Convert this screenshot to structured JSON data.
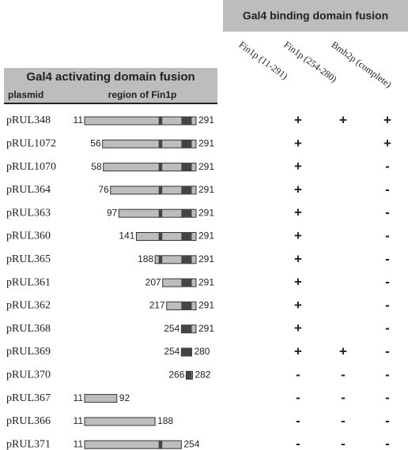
{
  "header": {
    "binding_title": "Gal4 binding domain fusion",
    "activating_title": "Gal4 activating domain fusion",
    "plasmid_label": "plasmid",
    "region_label": "region of Fin1p",
    "columns": [
      "Fin1p (11-291)",
      "Fin1p (254-280)",
      "Bmh2p (complete)"
    ]
  },
  "rows": [
    {
      "plasmid": "pRUL348",
      "start": 11,
      "end": 291,
      "results": [
        "+",
        "+",
        "+"
      ]
    },
    {
      "plasmid": "pRUL1072",
      "start": 56,
      "end": 291,
      "results": [
        "+",
        "",
        "+"
      ]
    },
    {
      "plasmid": "pRUL1070",
      "start": 58,
      "end": 291,
      "results": [
        "+",
        "",
        "-"
      ]
    },
    {
      "plasmid": "pRUL364",
      "start": 76,
      "end": 291,
      "results": [
        "+",
        "",
        "-"
      ]
    },
    {
      "plasmid": "pRUL363",
      "start": 97,
      "end": 291,
      "results": [
        "+",
        "",
        "-"
      ]
    },
    {
      "plasmid": "pRUL360",
      "start": 141,
      "end": 291,
      "results": [
        "+",
        "",
        "-"
      ]
    },
    {
      "plasmid": "pRUL365",
      "start": 188,
      "end": 291,
      "results": [
        "+",
        "",
        "-"
      ]
    },
    {
      "plasmid": "pRUL361",
      "start": 207,
      "end": 291,
      "results": [
        "+",
        "",
        "-"
      ]
    },
    {
      "plasmid": "pRUL362",
      "start": 217,
      "end": 291,
      "results": [
        "+",
        "",
        "-"
      ]
    },
    {
      "plasmid": "pRUL368",
      "start": 254,
      "end": 291,
      "results": [
        "+",
        "",
        "-"
      ]
    },
    {
      "plasmid": "pRUL369",
      "start": 254,
      "end": 280,
      "results": [
        "+",
        "+",
        "-"
      ]
    },
    {
      "plasmid": "pRUL370",
      "start": 266,
      "end": 282,
      "results": [
        "-",
        "-",
        "-"
      ]
    },
    {
      "plasmid": "pRUL367",
      "start": 11,
      "end": 92,
      "results": [
        "-",
        "-",
        "-"
      ]
    },
    {
      "plasmid": "pRUL366",
      "start": 11,
      "end": 188,
      "results": [
        "-",
        "-",
        "-"
      ]
    },
    {
      "plasmid": "pRUL371",
      "start": 11,
      "end": 254,
      "results": [
        "-",
        "-",
        "-"
      ]
    }
  ]
}
